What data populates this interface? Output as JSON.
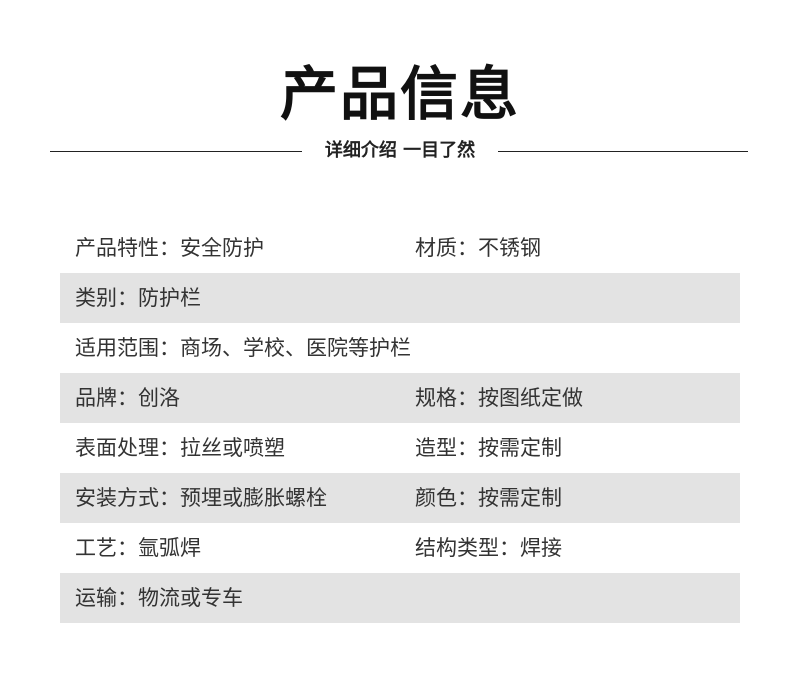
{
  "title": "产品信息",
  "subtitle": "详细介绍 一目了然",
  "stripe_color": "#e3e3e3",
  "rows": [
    {
      "left": "产品特性：安全防护",
      "right": "材质：不锈钢"
    },
    {
      "left": "类别：防护栏",
      "right": ""
    },
    {
      "left": "适用范围：商场、学校、医院等护栏",
      "right": ""
    },
    {
      "left": "品牌：创洛",
      "right": "规格：按图纸定做"
    },
    {
      "left": "表面处理：拉丝或喷塑",
      "right": "造型：按需定制"
    },
    {
      "left": "安装方式：预埋或膨胀螺栓",
      "right": "颜色：按需定制"
    },
    {
      "left": "工艺：氩弧焊",
      "right": "结构类型：焊接"
    },
    {
      "left": "运输：物流或专车",
      "right": ""
    }
  ]
}
